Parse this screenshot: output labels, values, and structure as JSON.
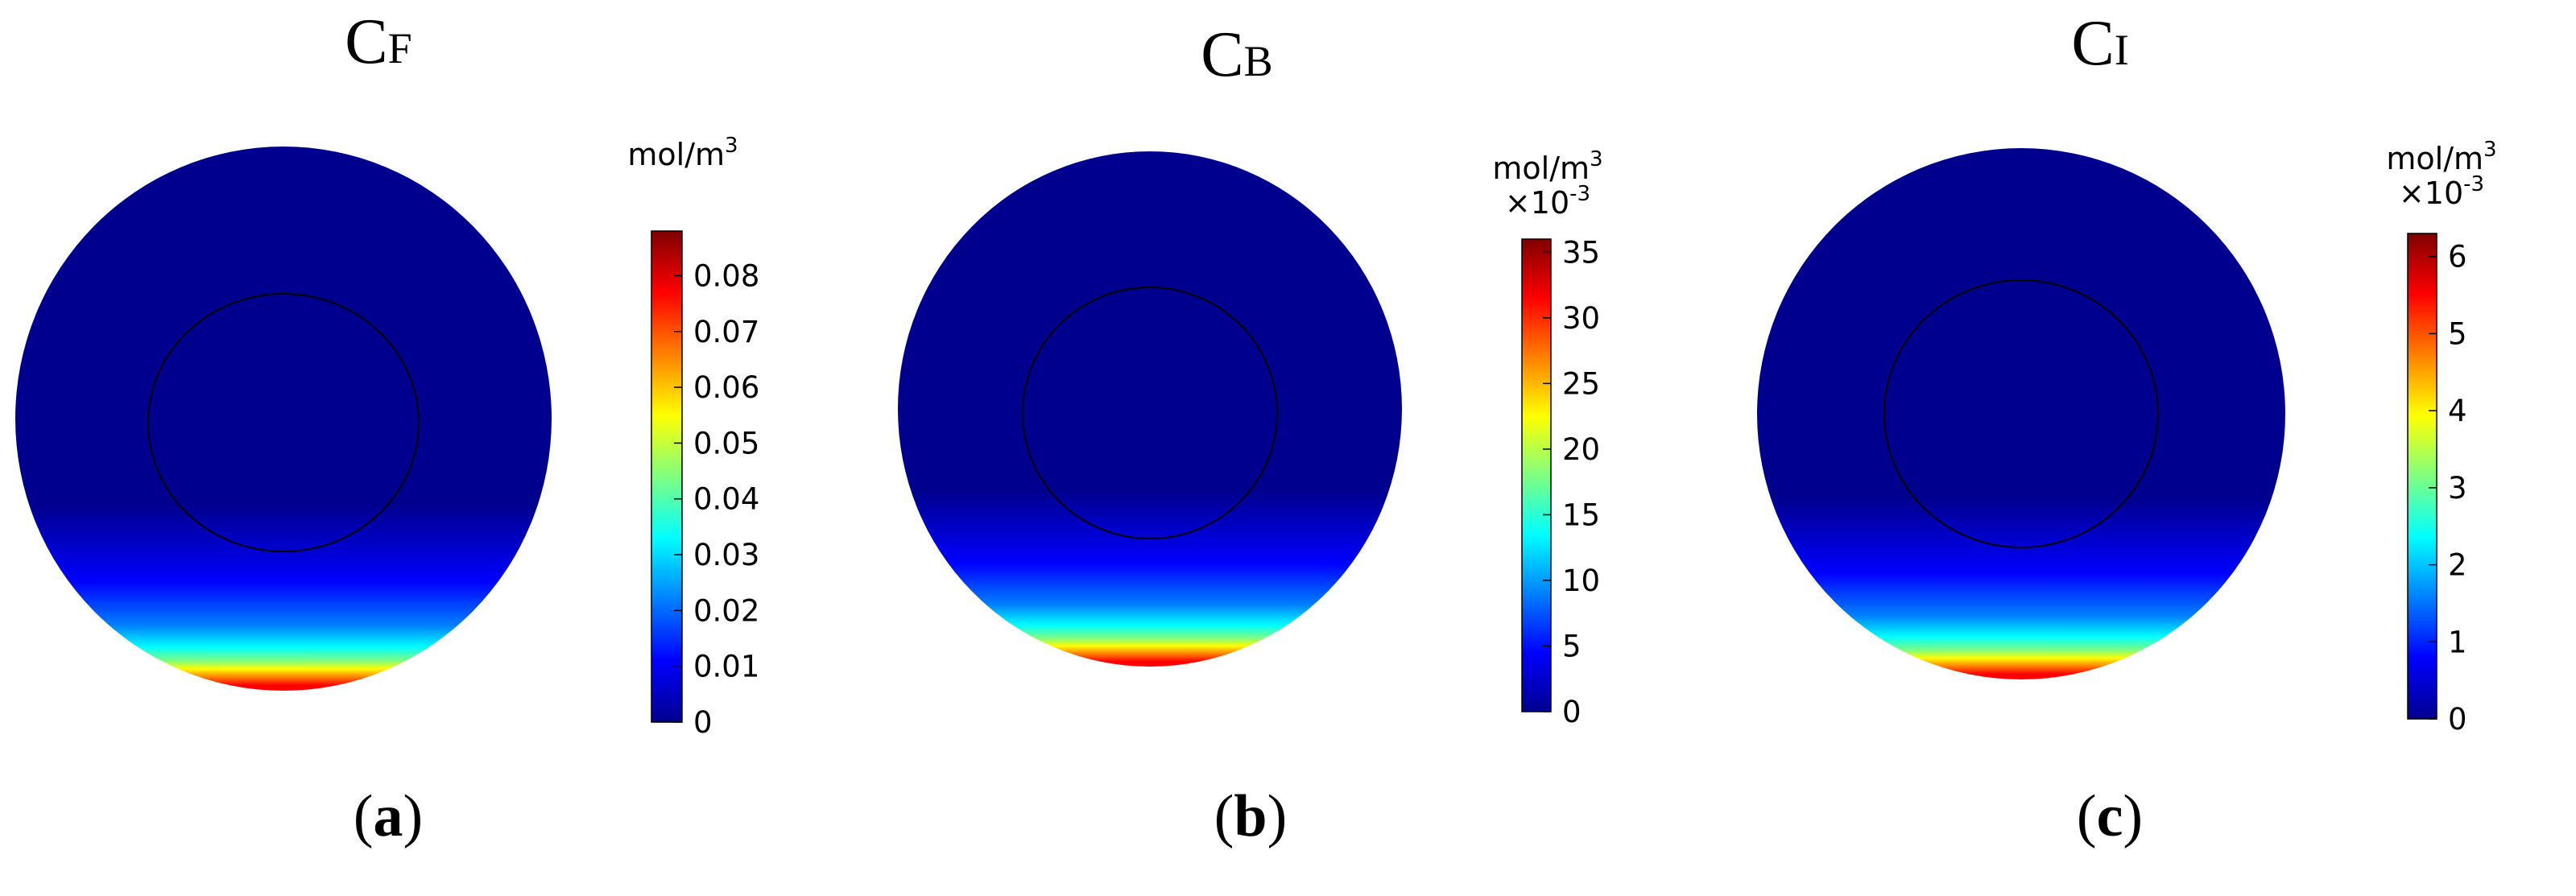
{
  "figure": {
    "panels": [
      {
        "title_main": "C",
        "title_sub": "F",
        "unit_text": "mol/m",
        "unit_sup": "3",
        "scale_text": "",
        "scale_sup": "",
        "ticks": [
          "0",
          "0.01",
          "0.02",
          "0.03",
          "0.04",
          "0.05",
          "0.06",
          "0.07",
          "0.08"
        ],
        "tick_values": [
          0,
          0.01,
          0.02,
          0.03,
          0.04,
          0.05,
          0.06,
          0.07,
          0.08
        ],
        "colorbar_range": [
          0,
          0.088
        ],
        "caption_open": "(",
        "caption_letter": "a",
        "caption_close": ")"
      },
      {
        "title_main": "C",
        "title_sub": "B",
        "unit_text": "mol/m",
        "unit_sup": "3",
        "scale_text": "×10",
        "scale_sup": "-3",
        "ticks": [
          "0",
          "5",
          "10",
          "15",
          "20",
          "25",
          "30",
          "35"
        ],
        "tick_values": [
          0,
          5,
          10,
          15,
          20,
          25,
          30,
          35
        ],
        "colorbar_range": [
          0,
          36
        ],
        "caption_open": "(",
        "caption_letter": "b",
        "caption_close": ")"
      },
      {
        "title_main": "C",
        "title_sub": "I",
        "unit_text": "mol/m",
        "unit_sup": "3",
        "scale_text": "×10",
        "scale_sup": "-3",
        "ticks": [
          "0",
          "1",
          "2",
          "3",
          "4",
          "5",
          "6"
        ],
        "tick_values": [
          0,
          1,
          2,
          3,
          4,
          5,
          6
        ],
        "colorbar_range": [
          0,
          6.3
        ],
        "caption_open": "(",
        "caption_letter": "c",
        "caption_close": ")"
      }
    ],
    "colormap": [
      "#00008f",
      "#0000ff",
      "#0080ff",
      "#00ffff",
      "#80ff80",
      "#ffff00",
      "#ff8000",
      "#ff0000",
      "#800000"
    ],
    "disk_color": "#00008f"
  }
}
